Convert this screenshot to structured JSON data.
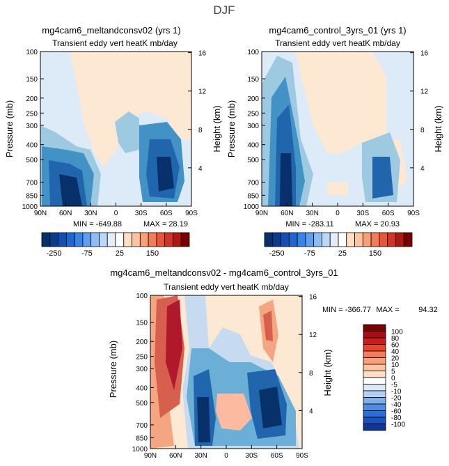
{
  "page_title": "DJF",
  "colors": {
    "blue_dark": "#08306b",
    "blue_mid": "#2166ac",
    "blue_light": "#c6dbef",
    "white": "#ffffff",
    "peach": "#fde0c5",
    "orange": "#f4a582",
    "red": "#d6604d",
    "red_dark": "#8b0000"
  },
  "chart_data": [
    {
      "type": "heatmap",
      "id": "panel_meltandconsv",
      "title": "mg4cam6_meltandconsv02 (yrs 1)",
      "subtitle": "Transient eddy vert heatK mb/day",
      "xlabel": "",
      "ylabel": "Pressure (mb)",
      "y2label": "Height (km)",
      "x_ticks": [
        "90N",
        "60N",
        "30N",
        "0",
        "30S",
        "60S",
        "90S"
      ],
      "x_tick_values": [
        90,
        60,
        30,
        0,
        -30,
        -60,
        -90
      ],
      "y_ticks": [
        "100",
        "150",
        "200",
        "250",
        "300",
        "400",
        "500",
        "700",
        "850",
        "1000"
      ],
      "y_tick_values": [
        100,
        150,
        200,
        250,
        300,
        400,
        500,
        700,
        850,
        1000
      ],
      "y2_ticks": [
        "16",
        "12",
        "8",
        "4"
      ],
      "y2_tick_values": [
        16,
        12,
        8,
        4
      ],
      "min_label": "MIN = -649.88",
      "max_label": "MAX = 28.19",
      "min": -649.88,
      "max": 28.19,
      "colorbar_labels": [
        "-250",
        "-75",
        "25",
        "150"
      ]
    },
    {
      "type": "heatmap",
      "id": "panel_control",
      "title": "mg4cam6_control_3yrs_01 (yrs 1)",
      "subtitle": "Transient eddy vert heatK mb/day",
      "xlabel": "",
      "ylabel": "Pressure (mb)",
      "y2label": "Height (km)",
      "x_ticks": [
        "90N",
        "60N",
        "30N",
        "0",
        "30S",
        "60S",
        "90S"
      ],
      "x_tick_values": [
        90,
        60,
        30,
        0,
        -30,
        -60,
        -90
      ],
      "y_ticks": [
        "100",
        "150",
        "200",
        "250",
        "300",
        "400",
        "500",
        "700",
        "850",
        "1000"
      ],
      "y_tick_values": [
        100,
        150,
        200,
        250,
        300,
        400,
        500,
        700,
        850,
        1000
      ],
      "y2_ticks": [
        "16",
        "12",
        "8",
        "4"
      ],
      "y2_tick_values": [
        16,
        12,
        8,
        4
      ],
      "min_label": "MIN = -283.11",
      "max_label": "MAX = 20.93",
      "min": -283.11,
      "max": 20.93,
      "colorbar_labels": [
        "-250",
        "-75",
        "25",
        "150"
      ]
    },
    {
      "type": "heatmap",
      "id": "panel_diff",
      "title": "mg4cam6_meltandconsv02 - mg4cam6_control_3yrs_01",
      "subtitle": "Transient eddy vert heatK mb/day",
      "xlabel": "",
      "ylabel": "Pressure (mb)",
      "y2label": "Height (km)",
      "x_ticks": [
        "90N",
        "60N",
        "30N",
        "0",
        "30S",
        "60S",
        "90S"
      ],
      "x_tick_values": [
        90,
        60,
        30,
        0,
        -30,
        -60,
        -90
      ],
      "y_ticks": [
        "100",
        "150",
        "200",
        "250",
        "300",
        "400",
        "500",
        "700",
        "850",
        "1000"
      ],
      "y_tick_values": [
        100,
        150,
        200,
        250,
        300,
        400,
        500,
        700,
        850,
        1000
      ],
      "y2_ticks": [
        "16",
        "12",
        "8",
        "4"
      ],
      "y2_tick_values": [
        16,
        12,
        8,
        4
      ],
      "min_label": "MIN = -366.77",
      "max_label": "MAX =",
      "max_value_label": "94.32",
      "min": -366.77,
      "max": 94.32,
      "colorbar_labels": [
        "100",
        "80",
        "60",
        "40",
        "20",
        "10",
        "5",
        "0",
        "-5",
        "-10",
        "-20",
        "-40",
        "-60",
        "-80",
        "-100"
      ]
    }
  ]
}
